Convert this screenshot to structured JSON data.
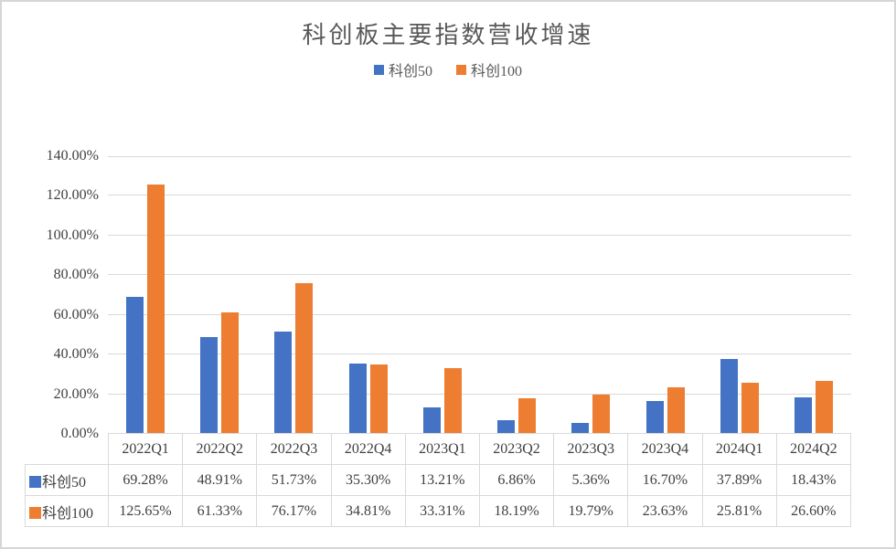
{
  "frame": {
    "background": "#ffffff",
    "border_color": "#d6d6d6"
  },
  "chart_data": {
    "type": "bar",
    "title": "科创板主要指数营收增速",
    "categories": [
      "2022Q1",
      "2022Q2",
      "2022Q3",
      "2022Q4",
      "2023Q1",
      "2023Q2",
      "2023Q3",
      "2023Q4",
      "2024Q1",
      "2024Q2"
    ],
    "series": [
      {
        "name": "科创50",
        "color": "#4472C4",
        "values": [
          69.28,
          48.91,
          51.73,
          35.3,
          13.21,
          6.86,
          5.36,
          16.7,
          37.89,
          18.43
        ],
        "labels": [
          "69.28%",
          "48.91%",
          "51.73%",
          "35.30%",
          "13.21%",
          "6.86%",
          "5.36%",
          "16.70%",
          "37.89%",
          "18.43%"
        ]
      },
      {
        "name": "科创100",
        "color": "#ED7D31",
        "values": [
          125.65,
          61.33,
          76.17,
          34.81,
          33.31,
          18.19,
          19.79,
          23.63,
          25.81,
          26.6
        ],
        "labels": [
          "125.65%",
          "61.33%",
          "76.17%",
          "34.81%",
          "33.31%",
          "18.19%",
          "19.79%",
          "23.63%",
          "25.81%",
          "26.60%"
        ]
      }
    ],
    "ylim": [
      0,
      140
    ],
    "y_tick_step": 20,
    "y_ticks": [
      "0.00%",
      "20.00%",
      "40.00%",
      "60.00%",
      "80.00%",
      "100.00%",
      "120.00%",
      "140.00%"
    ],
    "ylabel": "",
    "xlabel": "",
    "grid": true,
    "gridline_color": "#d9d9d9",
    "legend_position": "top",
    "data_table": true,
    "table_border_color": "#d9d9d9",
    "title_color": "#595959",
    "text_color": "#404040"
  }
}
